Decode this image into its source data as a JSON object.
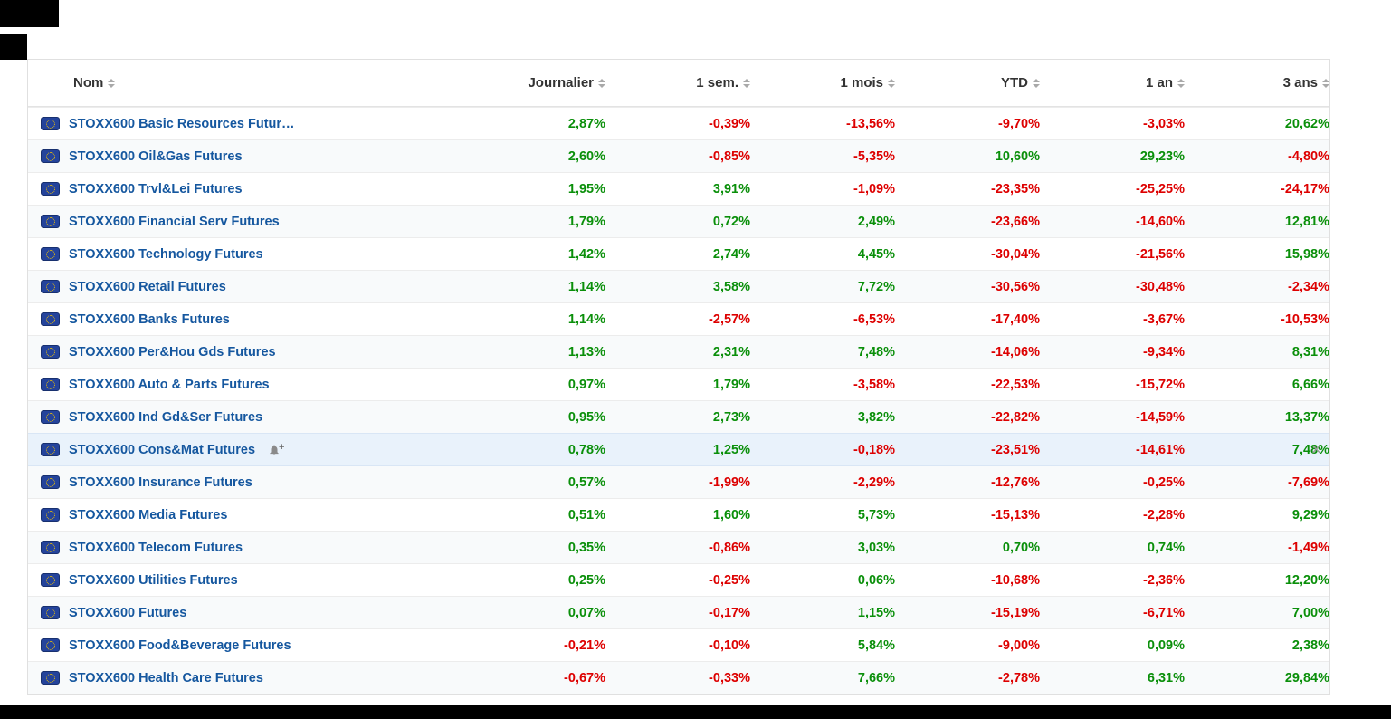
{
  "page": {
    "colors": {
      "positive": "#0a8f0a",
      "negative": "#dd0000",
      "link": "#15579f"
    },
    "close_symbol": "×",
    "alert_plus": "+"
  },
  "table": {
    "columns": [
      "Nom",
      "Journalier",
      "1 sem.",
      "1 mois",
      "YTD",
      "1 an",
      "3 ans"
    ],
    "rows": [
      {
        "name": "STOXX600 Basic Resources Futur…",
        "values": [
          "2,87%",
          "-0,39%",
          "-13,56%",
          "-9,70%",
          "-3,03%",
          "20,62%"
        ],
        "highlighted": false,
        "alert": false,
        "closable": false
      },
      {
        "name": "STOXX600 Oil&Gas Futures",
        "values": [
          "2,60%",
          "-0,85%",
          "-5,35%",
          "10,60%",
          "29,23%",
          "-4,80%"
        ],
        "highlighted": false,
        "alert": false,
        "closable": false
      },
      {
        "name": "STOXX600 Trvl&Lei Futures",
        "values": [
          "1,95%",
          "3,91%",
          "-1,09%",
          "-23,35%",
          "-25,25%",
          "-24,17%"
        ],
        "highlighted": false,
        "alert": false,
        "closable": false
      },
      {
        "name": "STOXX600 Financial Serv Futures",
        "values": [
          "1,79%",
          "0,72%",
          "2,49%",
          "-23,66%",
          "-14,60%",
          "12,81%"
        ],
        "highlighted": false,
        "alert": false,
        "closable": false
      },
      {
        "name": "STOXX600 Technology Futures",
        "values": [
          "1,42%",
          "2,74%",
          "4,45%",
          "-30,04%",
          "-21,56%",
          "15,98%"
        ],
        "highlighted": false,
        "alert": false,
        "closable": false
      },
      {
        "name": "STOXX600 Retail Futures",
        "values": [
          "1,14%",
          "3,58%",
          "7,72%",
          "-30,56%",
          "-30,48%",
          "-2,34%"
        ],
        "highlighted": false,
        "alert": false,
        "closable": false
      },
      {
        "name": "STOXX600 Banks Futures",
        "values": [
          "1,14%",
          "-2,57%",
          "-6,53%",
          "-17,40%",
          "-3,67%",
          "-10,53%"
        ],
        "highlighted": false,
        "alert": false,
        "closable": false
      },
      {
        "name": "STOXX600 Per&Hou Gds Futures",
        "values": [
          "1,13%",
          "2,31%",
          "7,48%",
          "-14,06%",
          "-9,34%",
          "8,31%"
        ],
        "highlighted": false,
        "alert": false,
        "closable": false
      },
      {
        "name": "STOXX600 Auto & Parts Futures",
        "values": [
          "0,97%",
          "1,79%",
          "-3,58%",
          "-22,53%",
          "-15,72%",
          "6,66%"
        ],
        "highlighted": false,
        "alert": false,
        "closable": false
      },
      {
        "name": "STOXX600 Ind Gd&Ser Futures",
        "values": [
          "0,95%",
          "2,73%",
          "3,82%",
          "-22,82%",
          "-14,59%",
          "13,37%"
        ],
        "highlighted": false,
        "alert": false,
        "closable": false
      },
      {
        "name": "STOXX600 Cons&Mat Futures",
        "values": [
          "0,78%",
          "1,25%",
          "-0,18%",
          "-23,51%",
          "-14,61%",
          "7,48%"
        ],
        "highlighted": true,
        "alert": true,
        "closable": true
      },
      {
        "name": "STOXX600 Insurance Futures",
        "values": [
          "0,57%",
          "-1,99%",
          "-2,29%",
          "-12,76%",
          "-0,25%",
          "-7,69%"
        ],
        "highlighted": false,
        "alert": false,
        "closable": false
      },
      {
        "name": "STOXX600 Media Futures",
        "values": [
          "0,51%",
          "1,60%",
          "5,73%",
          "-15,13%",
          "-2,28%",
          "9,29%"
        ],
        "highlighted": false,
        "alert": false,
        "closable": false
      },
      {
        "name": "STOXX600 Telecom Futures",
        "values": [
          "0,35%",
          "-0,86%",
          "3,03%",
          "0,70%",
          "0,74%",
          "-1,49%"
        ],
        "highlighted": false,
        "alert": false,
        "closable": false
      },
      {
        "name": "STOXX600 Utilities Futures",
        "values": [
          "0,25%",
          "-0,25%",
          "0,06%",
          "-10,68%",
          "-2,36%",
          "12,20%"
        ],
        "highlighted": false,
        "alert": false,
        "closable": false
      },
      {
        "name": "STOXX600 Futures",
        "values": [
          "0,07%",
          "-0,17%",
          "1,15%",
          "-15,19%",
          "-6,71%",
          "7,00%"
        ],
        "highlighted": false,
        "alert": false,
        "closable": false
      },
      {
        "name": "STOXX600 Food&Beverage Futures",
        "values": [
          "-0,21%",
          "-0,10%",
          "5,84%",
          "-9,00%",
          "0,09%",
          "2,38%"
        ],
        "highlighted": false,
        "alert": false,
        "closable": false
      },
      {
        "name": "STOXX600 Health Care Futures",
        "values": [
          "-0,67%",
          "-0,33%",
          "7,66%",
          "-2,78%",
          "6,31%",
          "29,84%"
        ],
        "highlighted": false,
        "alert": false,
        "closable": false
      }
    ]
  }
}
